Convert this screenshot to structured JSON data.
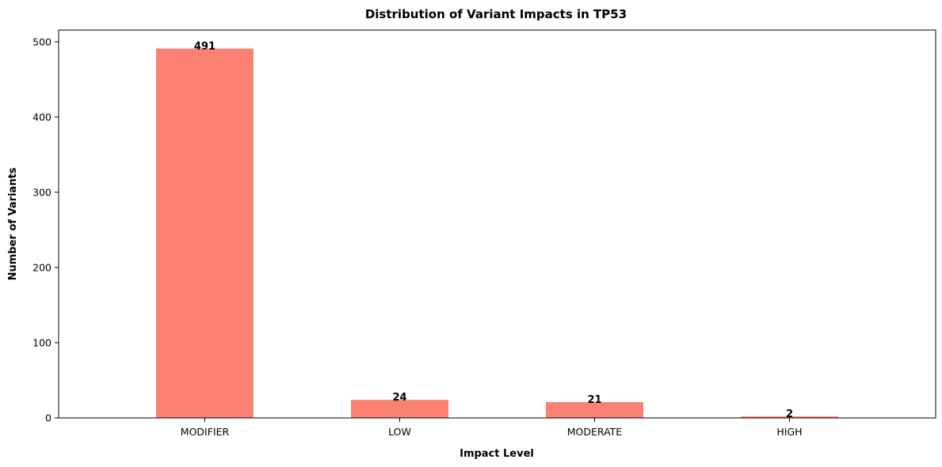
{
  "chart_data": {
    "type": "bar",
    "title": "Distribution of Variant Impacts in TP53",
    "xlabel": "Impact Level",
    "ylabel": "Number of Variants",
    "categories": [
      "MODIFIER",
      "LOW",
      "MODERATE",
      "HIGH"
    ],
    "values": [
      491,
      24,
      21,
      2
    ],
    "data_labels": [
      "491",
      "24",
      "21",
      "2"
    ],
    "ylim": [
      0,
      515.55
    ],
    "yticks": [
      0,
      100,
      200,
      300,
      400,
      500
    ],
    "ytick_labels": [
      "0",
      "100",
      "200",
      "300",
      "400",
      "500"
    ],
    "bar_color": "#fa8072",
    "grid": false,
    "legend": "none"
  }
}
